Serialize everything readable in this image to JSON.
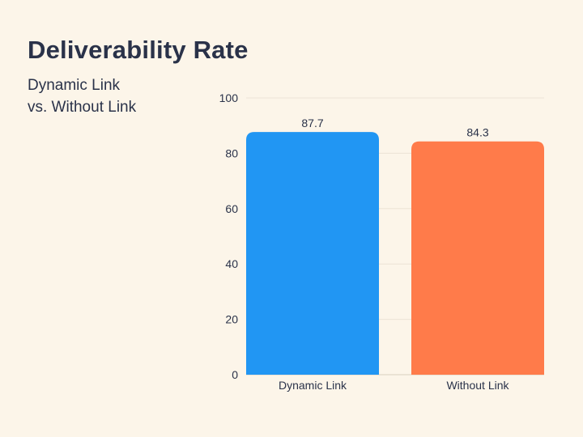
{
  "header": {
    "title": "Deliverability Rate",
    "subtitle_line1": "Dynamic Link",
    "subtitle_line2": "vs. Without Link"
  },
  "chart_data": {
    "type": "bar",
    "title": "Deliverability Rate",
    "subtitle": "Dynamic Link vs. Without Link",
    "categories": [
      "Dynamic Link",
      "Without Link"
    ],
    "values": [
      87.7,
      84.3
    ],
    "value_labels": [
      "87.7",
      "84.3"
    ],
    "colors": [
      "#2196f3",
      "#ff7b4a"
    ],
    "xlabel": "",
    "ylabel": "",
    "ylim": [
      0,
      100
    ],
    "yticks": [
      0,
      20,
      40,
      60,
      80,
      100
    ],
    "grid": true,
    "legend": "none"
  },
  "colors": {
    "background": "#fcf5e9",
    "text": "#2a3249",
    "grid": "#ece4d6"
  }
}
